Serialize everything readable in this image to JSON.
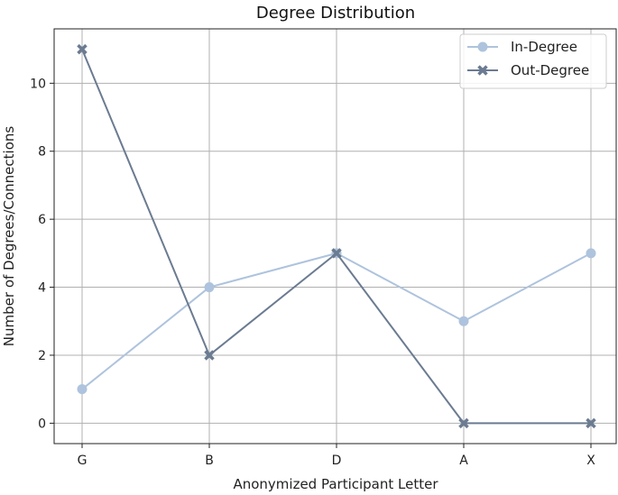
{
  "chart_data": {
    "type": "line",
    "title": "Degree Distribution",
    "xlabel": "Anonymized Participant Letter",
    "ylabel": "Number of Degrees/Connections",
    "categories": [
      "G",
      "B",
      "D",
      "A",
      "X"
    ],
    "ylim": [
      -0.6,
      11.6
    ],
    "yticks": [
      0,
      2,
      4,
      6,
      8,
      10
    ],
    "grid": true,
    "legend_position": "top-right",
    "series": [
      {
        "name": "In-Degree",
        "values": [
          1,
          4,
          5,
          3,
          5
        ],
        "color": "#aec3dd",
        "marker": "circle"
      },
      {
        "name": "Out-Degree",
        "values": [
          11,
          2,
          5,
          0,
          0
        ],
        "color": "#6b7b91",
        "marker": "x"
      }
    ]
  }
}
